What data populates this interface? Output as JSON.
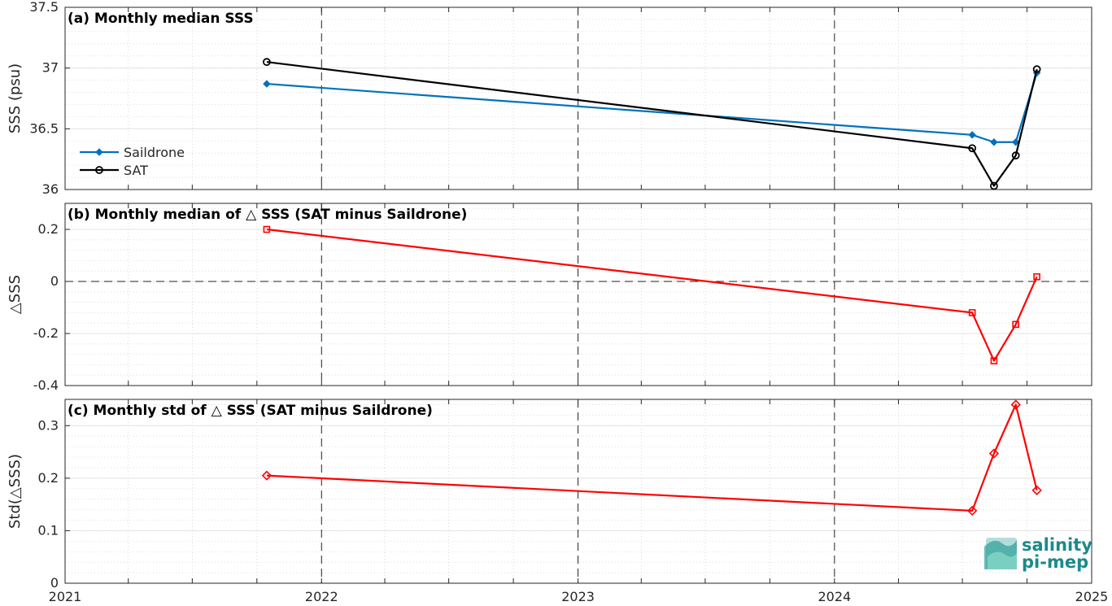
{
  "chart_data": [
    {
      "type": "line",
      "title": "(a) Monthly median SSS",
      "ylabel": "SSS (psu)",
      "xlim": [
        "2021-01-01",
        "2025-01-01"
      ],
      "ylim": [
        36,
        37.5
      ],
      "yticks": [
        36,
        36.5,
        37,
        37.5
      ],
      "ytick_labels": [
        "36",
        "36.5",
        "37",
        "37.5"
      ],
      "grid": true,
      "legend": "left",
      "series": [
        {
          "name": "Saildrone",
          "color": "#0072BD",
          "marker": "diamond-filled",
          "x": [
            "2021-10-15",
            "2024-07-15",
            "2024-08-15",
            "2024-09-15",
            "2024-10-15"
          ],
          "y": [
            36.87,
            36.45,
            36.39,
            36.39,
            36.96
          ]
        },
        {
          "name": "SAT",
          "color": "#000000",
          "marker": "circle-open",
          "x": [
            "2021-10-15",
            "2024-07-15",
            "2024-08-15",
            "2024-09-15",
            "2024-10-15"
          ],
          "y": [
            37.05,
            36.34,
            36.03,
            36.28,
            36.99
          ]
        }
      ]
    },
    {
      "type": "line",
      "title": "(b) Monthly median of △ SSS (SAT minus Saildrone)",
      "ylabel": "△SSS",
      "xlim": [
        "2021-01-01",
        "2025-01-01"
      ],
      "ylim": [
        -0.4,
        0.3
      ],
      "yticks": [
        -0.4,
        -0.2,
        0,
        0.2
      ],
      "ytick_labels": [
        "-0.4",
        "-0.2",
        "0",
        "0.2"
      ],
      "grid": true,
      "zero_line": true,
      "series": [
        {
          "color": "#FF0000",
          "marker": "square-open",
          "x": [
            "2021-10-15",
            "2024-07-15",
            "2024-08-15",
            "2024-09-15",
            "2024-10-15"
          ],
          "y": [
            0.2,
            -0.12,
            -0.305,
            -0.165,
            0.018
          ]
        }
      ]
    },
    {
      "type": "line",
      "title": "(c) Monthly std of △ SSS (SAT minus Saildrone)",
      "ylabel": "Std(△SSS)",
      "xlim": [
        "2021-01-01",
        "2025-01-01"
      ],
      "ylim": [
        0,
        0.35
      ],
      "yticks": [
        0,
        0.1,
        0.2,
        0.3
      ],
      "ytick_labels": [
        "0",
        "0.1",
        "0.2",
        "0.3"
      ],
      "xtick_labels": [
        "2021",
        "2022",
        "2023",
        "2024",
        "2025"
      ],
      "grid": true,
      "series": [
        {
          "color": "#FF0000",
          "marker": "diamond-open",
          "x": [
            "2021-10-15",
            "2024-07-15",
            "2024-08-15",
            "2024-09-15",
            "2024-10-15"
          ],
          "y": [
            0.205,
            0.138,
            0.247,
            0.34,
            0.177
          ]
        }
      ]
    }
  ],
  "logo": {
    "line1": "salinity",
    "line2": "pi-mep",
    "color": "#1a8a8a"
  }
}
